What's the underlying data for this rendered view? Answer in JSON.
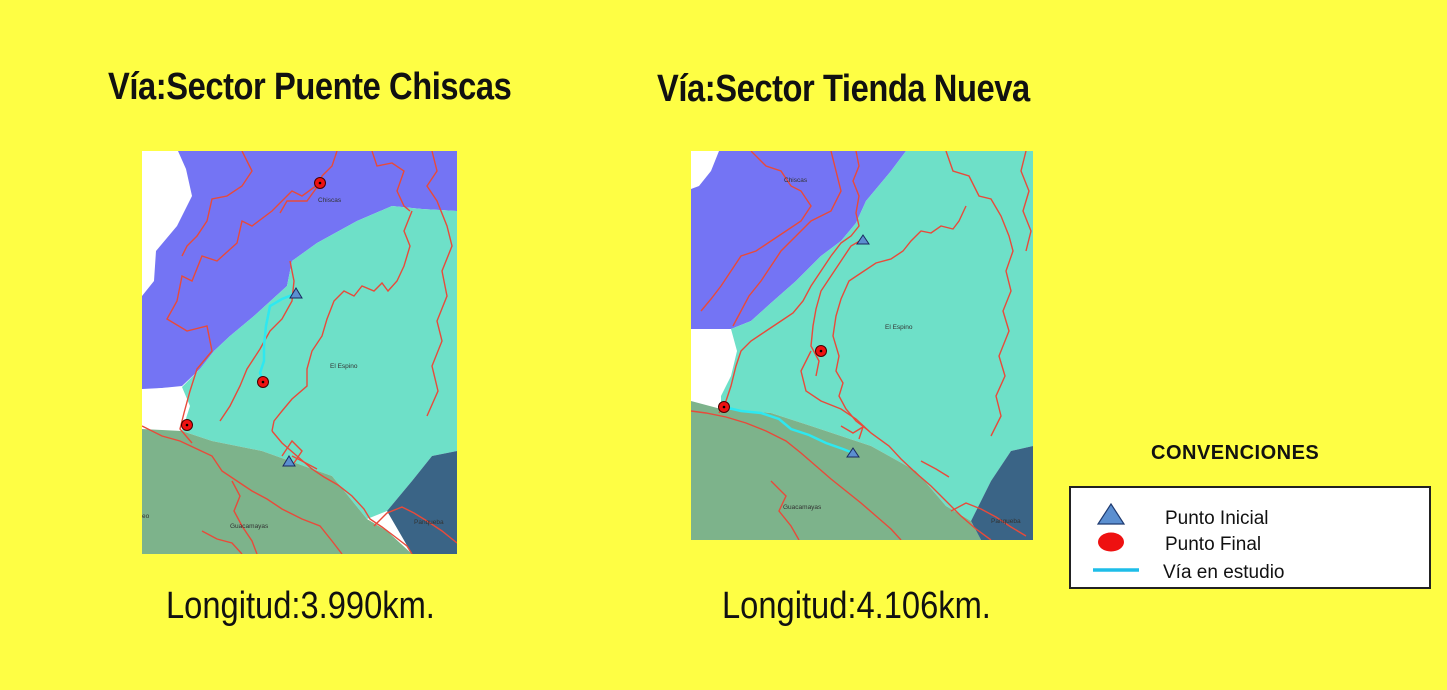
{
  "maps": [
    {
      "title": "Vía:Sector Puente Chiscas",
      "length": "Longitud:3.990km.",
      "places": [
        "Chiscas",
        "El Espino",
        "Guacamayas",
        "Panqueba",
        "eo"
      ]
    },
    {
      "title": "Vía:Sector Tienda Nueva",
      "length": "Longitud:4.106km.",
      "places": [
        "Chiscas",
        "El Espino",
        "Guacamayas",
        "Panqueba"
      ]
    }
  ],
  "legend": {
    "title": "CONVENCIONES",
    "items": [
      {
        "label": "Punto Inicial",
        "icon": "triangle-icon"
      },
      {
        "label": "Punto Final",
        "icon": "circle-icon"
      },
      {
        "label": "Vía en estudio",
        "icon": "line-icon"
      }
    ]
  },
  "colors": {
    "background": "#fefe44",
    "purple_region": "#7474f4",
    "teal_region": "#6ee0c8",
    "green_region": "#7db38b",
    "navy_region": "#3a6486",
    "road_red": "#e84a3a",
    "route_cyan": "#2ee8f0",
    "start_blue": "#5b8fd0",
    "end_red": "#ee1111"
  }
}
